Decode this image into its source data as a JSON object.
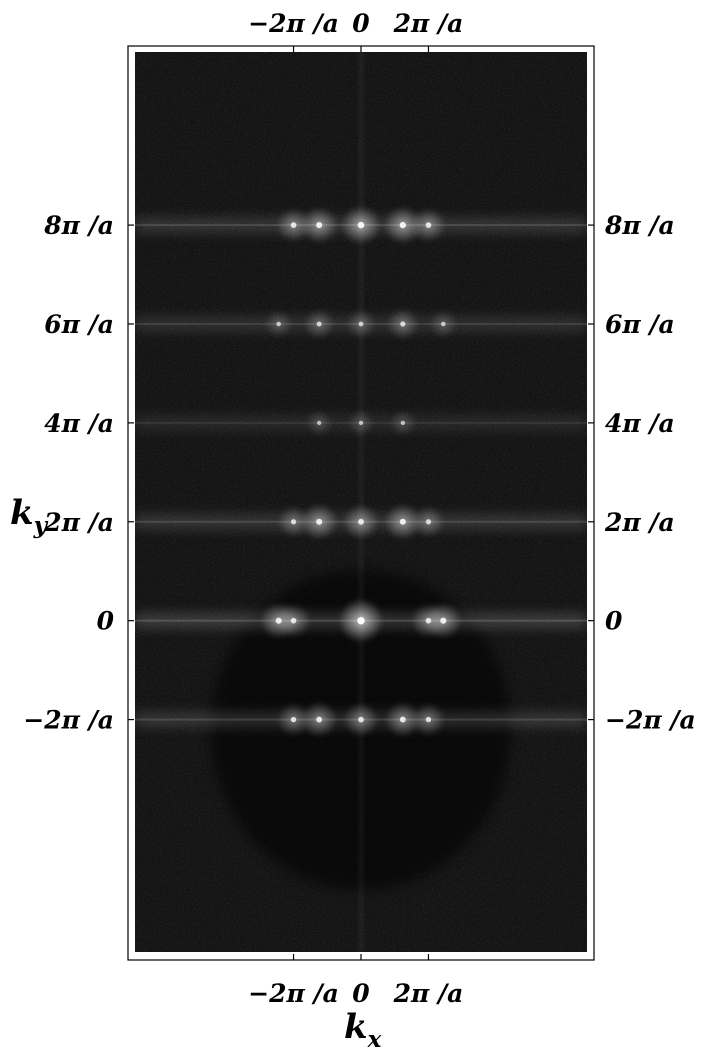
{
  "chart_data": {
    "type": "heatmap",
    "title": "",
    "xlabel": "k",
    "xlabel_subscript": "x",
    "ylabel": "k",
    "ylabel_subscript": "y",
    "x_unit": "2π/a",
    "y_unit": "2π/a",
    "xlim": [
      -3.35,
      3.35
    ],
    "ylim": [
      -3.35,
      5.75
    ],
    "x_ticks": [
      {
        "value": -1,
        "label": "−2π /a"
      },
      {
        "value": 0,
        "label": "0"
      },
      {
        "value": 1,
        "label": "2π /a"
      }
    ],
    "y_ticks": [
      {
        "value": -1,
        "label": "−2π /a"
      },
      {
        "value": 0,
        "label": "0"
      },
      {
        "value": 1,
        "label": "2π /a"
      },
      {
        "value": 2,
        "label": "4π /a"
      },
      {
        "value": 3,
        "label": "6π /a"
      },
      {
        "value": 4,
        "label": "8π /a"
      }
    ],
    "colormap": [
      "#000000",
      "#ffffff"
    ],
    "background_level": 0.08,
    "rows": [
      {
        "ky": -1,
        "intensity": 0.25,
        "peaks": [
          {
            "kx": -1.0,
            "intensity": 0.55
          },
          {
            "kx": -0.62,
            "intensity": 0.65
          },
          {
            "kx": 0.0,
            "intensity": 0.6
          },
          {
            "kx": 0.62,
            "intensity": 0.65
          },
          {
            "kx": 1.0,
            "intensity": 0.55
          }
        ]
      },
      {
        "ky": 0,
        "intensity": 0.3,
        "peaks": [
          {
            "kx": -1.22,
            "intensity": 0.7
          },
          {
            "kx": -1.0,
            "intensity": 0.6
          },
          {
            "kx": 0.0,
            "intensity": 1.0
          },
          {
            "kx": 1.0,
            "intensity": 0.6
          },
          {
            "kx": 1.22,
            "intensity": 0.7
          }
        ]
      },
      {
        "ky": 1,
        "intensity": 0.25,
        "peaks": [
          {
            "kx": -1.0,
            "intensity": 0.5
          },
          {
            "kx": -0.62,
            "intensity": 0.7
          },
          {
            "kx": 0.0,
            "intensity": 0.65
          },
          {
            "kx": 0.62,
            "intensity": 0.7
          },
          {
            "kx": 1.0,
            "intensity": 0.5
          }
        ]
      },
      {
        "ky": 2,
        "intensity": 0.15,
        "peaks": [
          {
            "kx": -0.62,
            "intensity": 0.3
          },
          {
            "kx": 0.0,
            "intensity": 0.3
          },
          {
            "kx": 0.62,
            "intensity": 0.3
          }
        ]
      },
      {
        "ky": 3,
        "intensity": 0.2,
        "peaks": [
          {
            "kx": -1.22,
            "intensity": 0.35
          },
          {
            "kx": -0.62,
            "intensity": 0.45
          },
          {
            "kx": 0.0,
            "intensity": 0.4
          },
          {
            "kx": 0.62,
            "intensity": 0.5
          },
          {
            "kx": 1.22,
            "intensity": 0.35
          }
        ]
      },
      {
        "ky": 4,
        "intensity": 0.25,
        "peaks": [
          {
            "kx": -1.0,
            "intensity": 0.6
          },
          {
            "kx": -0.62,
            "intensity": 0.7
          },
          {
            "kx": 0.0,
            "intensity": 0.8
          },
          {
            "kx": 0.62,
            "intensity": 0.75
          },
          {
            "kx": 1.0,
            "intensity": 0.6
          }
        ]
      }
    ],
    "grid": false,
    "legend": "none"
  }
}
